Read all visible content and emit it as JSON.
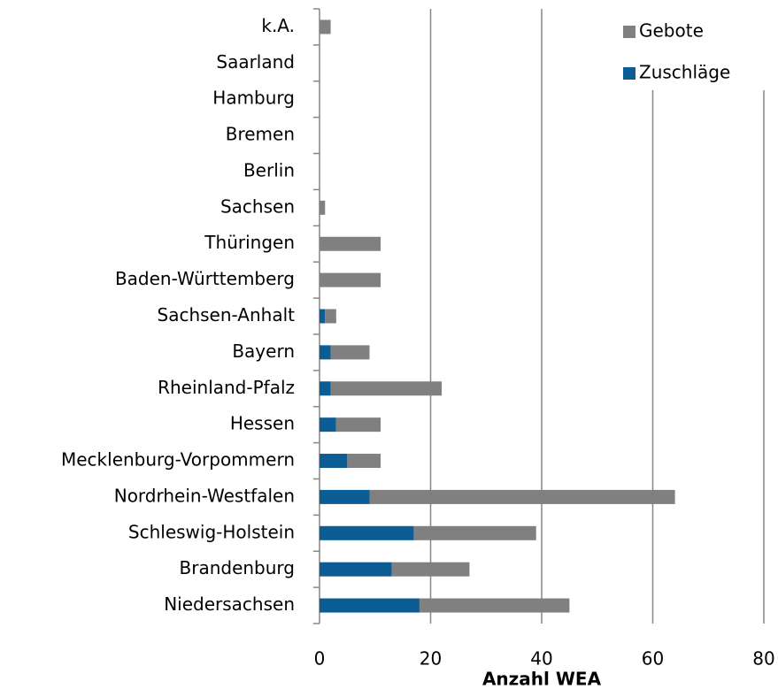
{
  "chart_data": {
    "type": "bar",
    "orientation": "horizontal",
    "stacked": true,
    "xlabel": "Anzahl WEA",
    "categories": [
      "Niedersachsen",
      "Brandenburg",
      "Schleswig-Holstein",
      "Nordrhein-Westfalen",
      "Mecklenburg-Vorpommern",
      "Hessen",
      "Rheinland-Pfalz",
      "Bayern",
      "Sachsen-Anhalt",
      "Baden-Württemberg",
      "Thüringen",
      "Sachsen",
      "Berlin",
      "Bremen",
      "Hamburg",
      "Saarland",
      "k.A."
    ],
    "series": [
      {
        "name": "Zuschläge",
        "color": "#0b5d94",
        "values": [
          18,
          13,
          17,
          9,
          5,
          3,
          2,
          2,
          1,
          0,
          0,
          0,
          0,
          0,
          0,
          0,
          0
        ]
      },
      {
        "name": "Gebote",
        "color": "#808080",
        "values": [
          27,
          14,
          22,
          55,
          6,
          8,
          20,
          7,
          2,
          11,
          11,
          1,
          0,
          0,
          0,
          0,
          2
        ]
      }
    ],
    "xlim": [
      0,
      80
    ],
    "xticks": [
      0,
      20,
      40,
      60,
      80
    ],
    "grid": true,
    "legend": "top-right"
  }
}
